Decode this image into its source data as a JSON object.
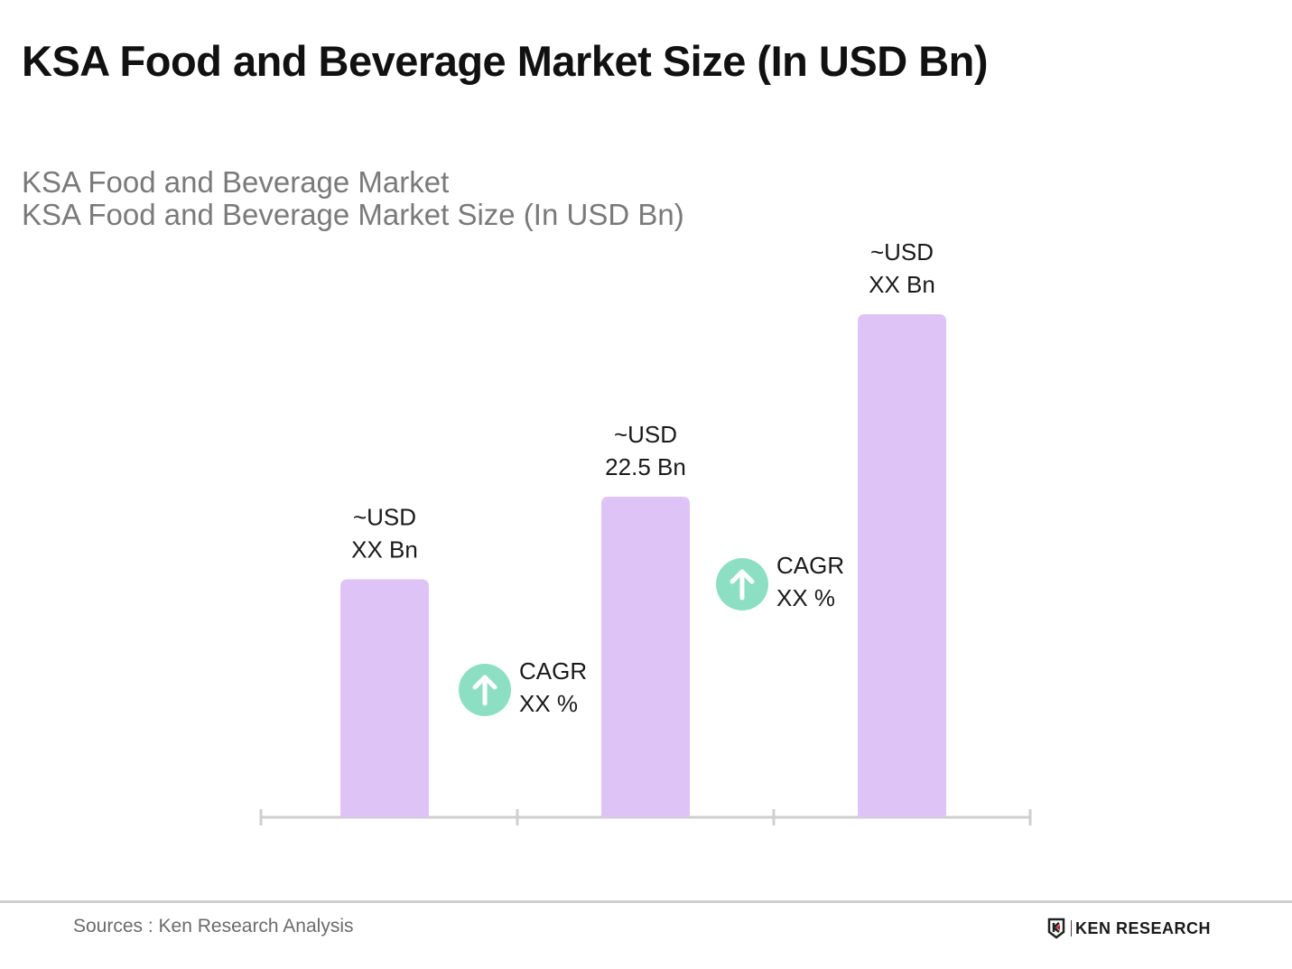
{
  "header": {
    "title": "KSA Food and Beverage Market Size (In USD Bn)",
    "subtitle_1": "KSA Food and Beverage Market",
    "subtitle_2": "KSA Food and Beverage Market Size (In USD Bn)"
  },
  "chart_data": {
    "type": "bar",
    "title": "KSA Food and Beverage Market Size (In USD Bn)",
    "categories": [
      "",
      "",
      ""
    ],
    "values": [
      16.7,
      22.5,
      35.3
    ],
    "data_labels": [
      [
        "~USD",
        "XX Bn"
      ],
      [
        "~USD",
        "22.5 Bn"
      ],
      [
        "~USD",
        "XX Bn"
      ]
    ],
    "annotations": [
      {
        "icon": "arrow-up-circle-icon",
        "lines": [
          "CAGR",
          "XX %"
        ]
      },
      {
        "icon": "arrow-up-circle-icon",
        "lines": [
          "CAGR",
          "XX %"
        ]
      }
    ],
    "ylim": [
      0,
      36
    ],
    "grid": false,
    "colors": {
      "bar": "#dec3f6",
      "cagr_icon": "#8ddfc4",
      "axis": "#cfcfcf"
    }
  },
  "footer": {
    "source": "Sources : Ken Research Analysis",
    "logo_text": "KEN RESEARCH"
  }
}
